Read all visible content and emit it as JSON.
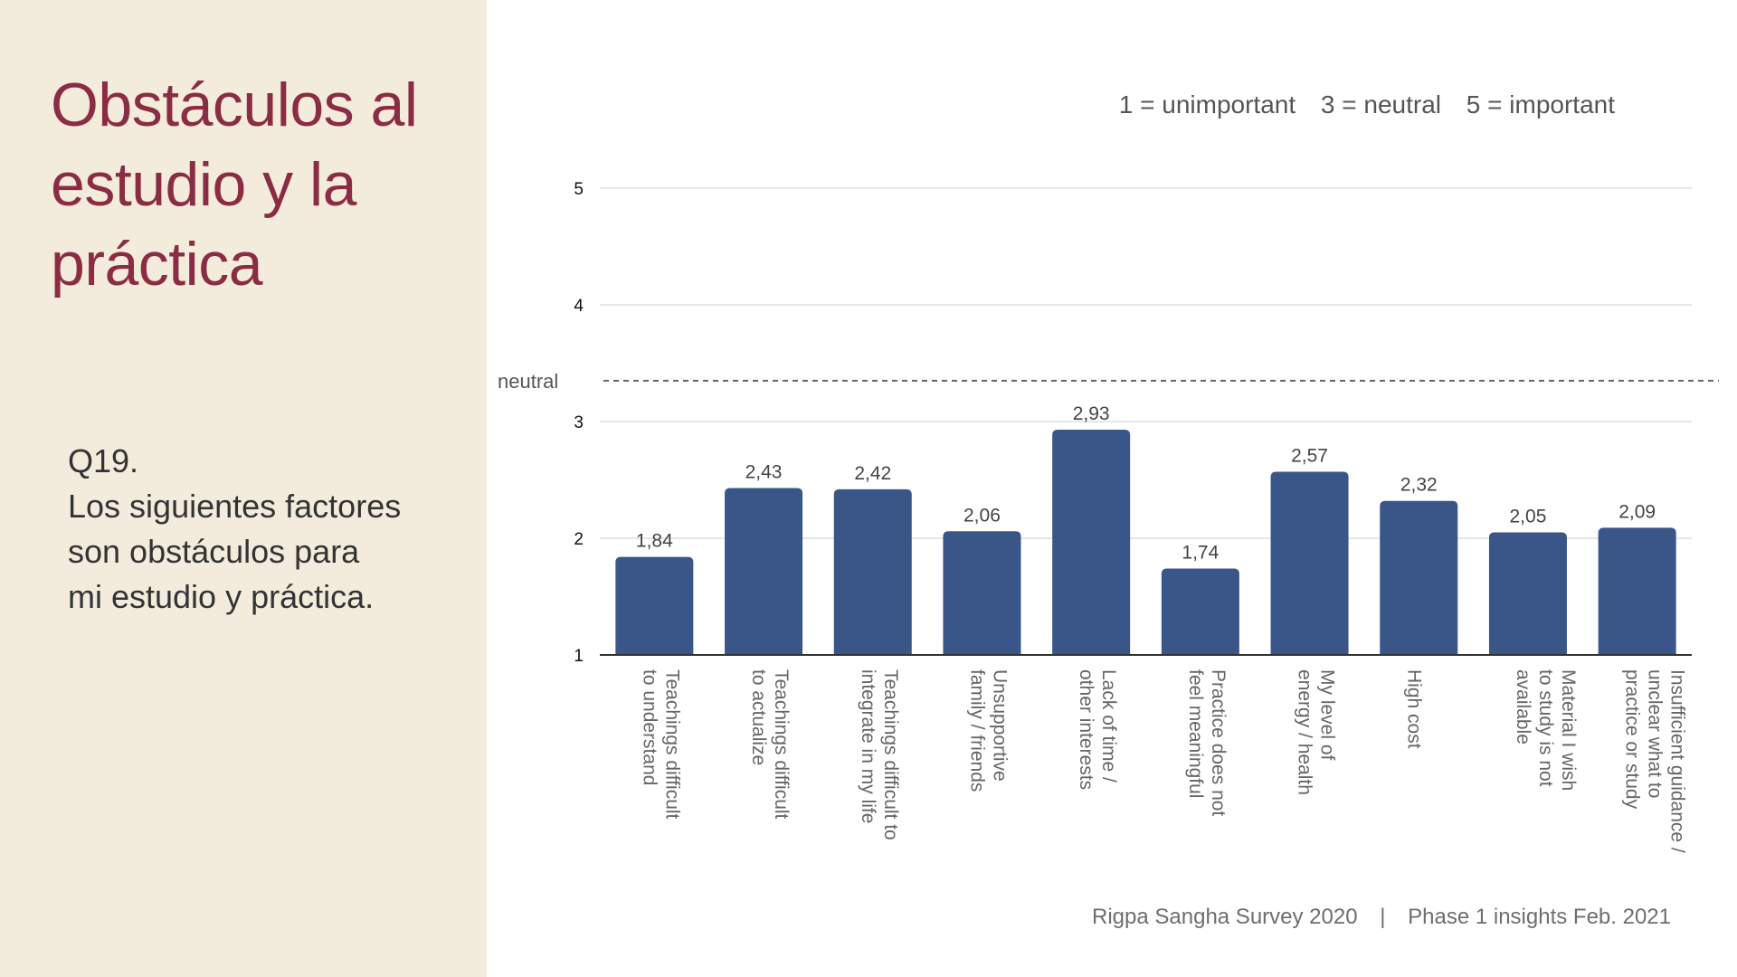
{
  "slide": {
    "title_lines": [
      "Obstáculos al",
      "estudio y la",
      "práctica"
    ],
    "question": {
      "number": "Q19.",
      "text_lines": [
        "Los siguientes factores",
        "son obstáculos para",
        "mi estudio y práctica."
      ]
    },
    "legend": [
      "1 = unimportant",
      "3 = neutral",
      "5 = important"
    ],
    "footer": {
      "survey": "Rigpa Sangha Survey 2020",
      "separator": "|",
      "phase": "Phase 1 insights Feb. 2021"
    }
  },
  "colors": {
    "title": "#8b2c45",
    "bar": "#3a5587",
    "panel": "#f3ecdc",
    "grid": "#d6d6d6"
  },
  "chart_data": {
    "type": "bar",
    "title": "",
    "xlabel": "",
    "ylabel": "",
    "ylim": [
      1,
      5
    ],
    "yticks": [
      1,
      2,
      3,
      4,
      5
    ],
    "grid": true,
    "reference_line": {
      "value": 3.35,
      "label": "neutral"
    },
    "categories": [
      [
        "Teachings difficult",
        "to understand"
      ],
      [
        "Teachings difficult",
        "to actualize"
      ],
      [
        "Teachings difficult to",
        "integrate in my life"
      ],
      [
        "Unsupportive",
        "family / friends"
      ],
      [
        "Lack of time /",
        "other interests"
      ],
      [
        "Practice does not",
        "feel meaningful"
      ],
      [
        "My level of",
        "energy / health"
      ],
      [
        "High cost"
      ],
      [
        "Material I wish",
        "to study is not",
        "available"
      ],
      [
        "Insufficient guidance /",
        "unclear what to",
        "practice or study"
      ]
    ],
    "values": [
      1.84,
      2.43,
      2.42,
      2.06,
      2.93,
      1.74,
      2.57,
      2.32,
      2.05,
      2.09
    ],
    "value_labels": [
      "1,84",
      "2,43",
      "2,42",
      "2,06",
      "2,93",
      "1,74",
      "2,57",
      "2,32",
      "2,05",
      "2,09"
    ]
  }
}
